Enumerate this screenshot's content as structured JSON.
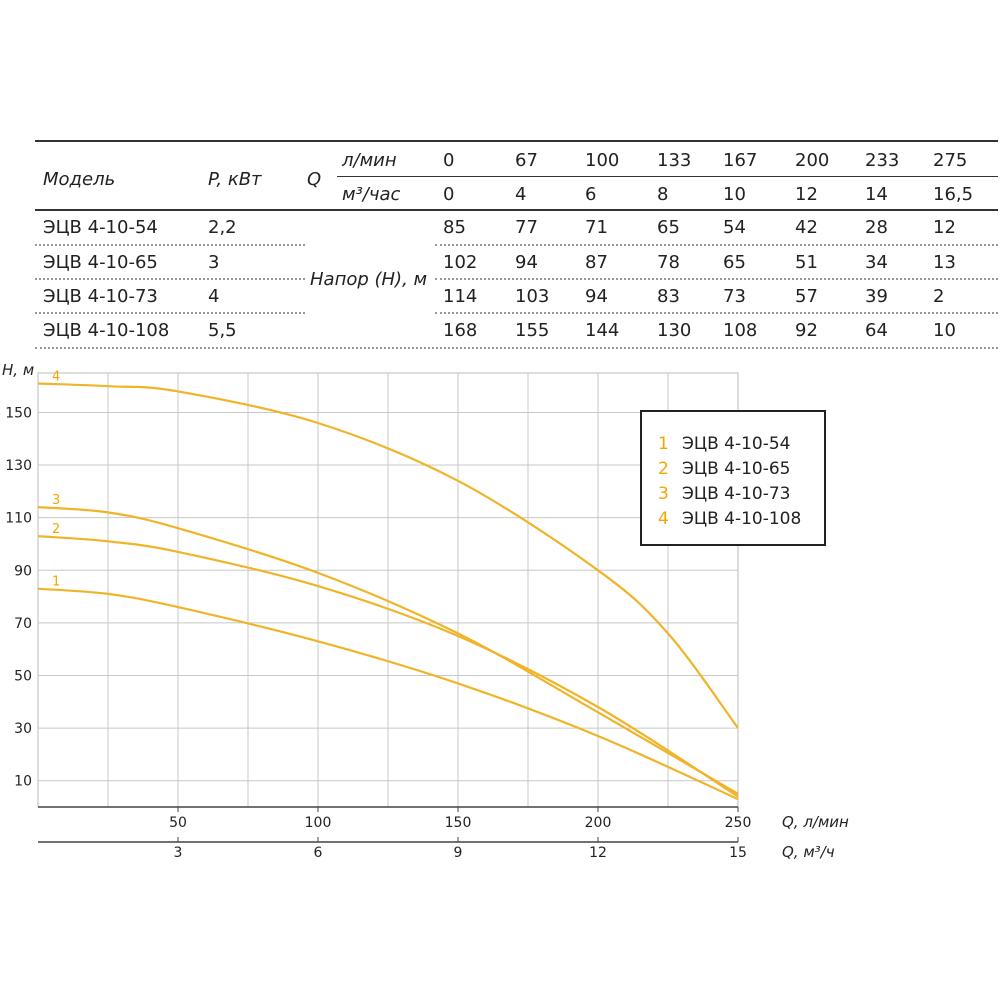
{
  "table": {
    "header": {
      "model": "Модель",
      "power": "P, кВт",
      "q": "Q",
      "unit_lmin": "л/мин",
      "unit_m3h": "м³/час",
      "flow_lmin": [
        "0",
        "67",
        "100",
        "133",
        "167",
        "200",
        "233",
        "275"
      ],
      "flow_m3h": [
        "0",
        "4",
        "6",
        "8",
        "10",
        "12",
        "14",
        "16,5"
      ]
    },
    "head_label": "Напор (Н), м",
    "rows": [
      {
        "model": "ЭЦВ 4-10-54",
        "power": "2,2",
        "heads": [
          "85",
          "77",
          "71",
          "65",
          "54",
          "42",
          "28",
          "12"
        ]
      },
      {
        "model": "ЭЦВ 4-10-65",
        "power": "3",
        "heads": [
          "102",
          "94",
          "87",
          "78",
          "65",
          "51",
          "34",
          "13"
        ]
      },
      {
        "model": "ЭЦВ 4-10-73",
        "power": "4",
        "heads": [
          "114",
          "103",
          "94",
          "83",
          "73",
          "57",
          "39",
          "2"
        ]
      },
      {
        "model": "ЭЦВ 4-10-108",
        "power": "5,5",
        "heads": [
          "168",
          "155",
          "144",
          "130",
          "108",
          "92",
          "64",
          "10"
        ]
      }
    ]
  },
  "chart_data": {
    "type": "line",
    "ylabel": "Н, м",
    "xlabel": "Q, л/мин",
    "xlabel2": "Q, м³/ч",
    "xlim": [
      0,
      250
    ],
    "ylim": [
      0,
      165
    ],
    "y_ticks": [
      "10",
      "30",
      "50",
      "70",
      "90",
      "110",
      "130",
      "150"
    ],
    "y_tick_values": [
      10,
      30,
      50,
      70,
      90,
      110,
      130,
      150
    ],
    "x_ticks": [
      "50",
      "100",
      "150",
      "200",
      "250"
    ],
    "x_tick_values": [
      50,
      100,
      150,
      200,
      250
    ],
    "x2_ticks": [
      "3",
      "6",
      "9",
      "12",
      "15"
    ],
    "x2_tick_values": [
      50,
      100,
      150,
      200,
      250
    ],
    "grid": true,
    "legend_position": "top-right",
    "line_color": "#F0B429",
    "label_color": "#F0A800",
    "series": [
      {
        "name": "ЭЦВ 4-10-54",
        "label": "1",
        "points": [
          [
            0,
            83
          ],
          [
            25,
            81
          ],
          [
            50,
            76
          ],
          [
            100,
            63
          ],
          [
            150,
            47
          ],
          [
            200,
            27
          ],
          [
            250,
            3
          ]
        ]
      },
      {
        "name": "ЭЦВ 4-10-65",
        "label": "2",
        "points": [
          [
            0,
            103
          ],
          [
            25,
            101
          ],
          [
            50,
            97
          ],
          [
            100,
            84
          ],
          [
            150,
            65
          ],
          [
            200,
            38
          ],
          [
            250,
            4
          ]
        ]
      },
      {
        "name": "ЭЦВ 4-10-73",
        "label": "3",
        "points": [
          [
            0,
            114
          ],
          [
            25,
            112
          ],
          [
            50,
            106
          ],
          [
            100,
            89
          ],
          [
            150,
            66
          ],
          [
            200,
            36
          ],
          [
            250,
            5
          ]
        ]
      },
      {
        "name": "ЭЦВ 4-10-108",
        "label": "4",
        "points": [
          [
            0,
            161
          ],
          [
            25,
            160
          ],
          [
            50,
            158
          ],
          [
            100,
            146
          ],
          [
            150,
            124
          ],
          [
            200,
            90
          ],
          [
            225,
            66
          ],
          [
            250,
            30
          ]
        ]
      }
    ]
  }
}
